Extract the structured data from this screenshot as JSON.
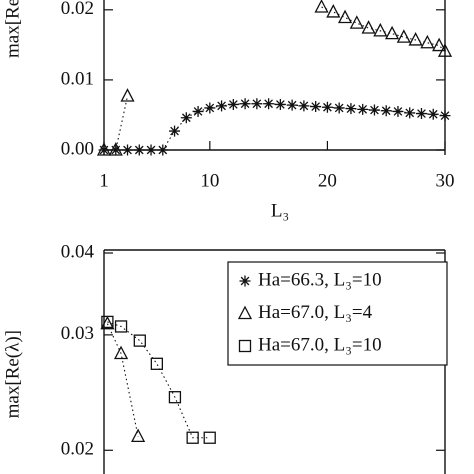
{
  "chart_data": [
    {
      "type": "scatter",
      "y_label": "max[Re(λ)]",
      "x_label": "L₃",
      "xlim": [
        1,
        30
      ],
      "xticks": [
        1,
        10,
        20,
        30
      ],
      "ylim": [
        0,
        0.0214
      ],
      "yticks": [
        {
          "value": 0,
          "label": "0.00"
        },
        {
          "value": 0.01,
          "label": "0.01"
        },
        {
          "value": 0.02,
          "label": "0.02"
        }
      ],
      "series": [
        {
          "marker": "star",
          "color": "#111",
          "x": [
            1,
            2,
            3,
            4,
            5,
            6,
            7,
            8,
            9,
            10,
            11,
            12,
            13,
            14,
            15,
            16,
            17,
            18,
            19,
            20,
            21,
            22,
            23,
            24,
            25,
            26,
            27,
            28,
            29,
            30
          ],
          "values": [
            0,
            0,
            0,
            0,
            0,
            0,
            0.0027,
            0.0046,
            0.0055,
            0.006,
            0.0063,
            0.0065,
            0.0066,
            0.0066,
            0.0066,
            0.0065,
            0.0064,
            0.0063,
            0.0062,
            0.0061,
            0.006,
            0.0059,
            0.0058,
            0.0057,
            0.0056,
            0.0055,
            0.0053,
            0.0052,
            0.0051,
            0.0049
          ]
        },
        {
          "marker": "triangle",
          "color": "#111",
          "x": [
            1,
            2,
            3,
            null,
            19.5,
            20.5,
            21.5,
            22.5,
            23.5,
            24.5,
            25.5,
            26.5,
            27.5,
            28.5,
            29.5,
            30
          ],
          "values": [
            0,
            0,
            0.0077,
            null,
            0.0204,
            0.0197,
            0.0189,
            0.0181,
            0.0174,
            0.017,
            0.0166,
            0.0161,
            0.0157,
            0.0153,
            0.0149,
            0.0141
          ]
        }
      ]
    },
    {
      "type": "scatter",
      "y_label": "max[Re(λ)]",
      "log_y": true,
      "xlim": [
        0,
        1
      ],
      "ylim": [
        0.0184,
        0.04
      ],
      "yticks": [
        {
          "value": 0.04,
          "label": "0.04"
        },
        {
          "value": 0.03,
          "label": "0.03"
        },
        {
          "value": 0.02,
          "label": "0.02"
        }
      ],
      "series": [
        {
          "name": "Ha=66.3,  L₃=10",
          "marker": "star",
          "color": "#111",
          "x": [],
          "values": []
        },
        {
          "name": "Ha=67.0,  L₃=4",
          "marker": "triangle",
          "color": "#111",
          "x": [
            0.01,
            0.05,
            0.1
          ],
          "values": [
            0.0312,
            0.0281,
            0.021
          ]
        },
        {
          "name": "Ha=67.0,  L₃=10",
          "marker": "square",
          "color": "#111",
          "x": [
            0.01,
            0.05,
            0.105,
            0.155,
            0.208,
            0.26,
            0.31
          ],
          "values": [
            0.0314,
            0.0309,
            0.0294,
            0.0271,
            0.0241,
            0.0209,
            0.0209
          ]
        }
      ]
    }
  ]
}
